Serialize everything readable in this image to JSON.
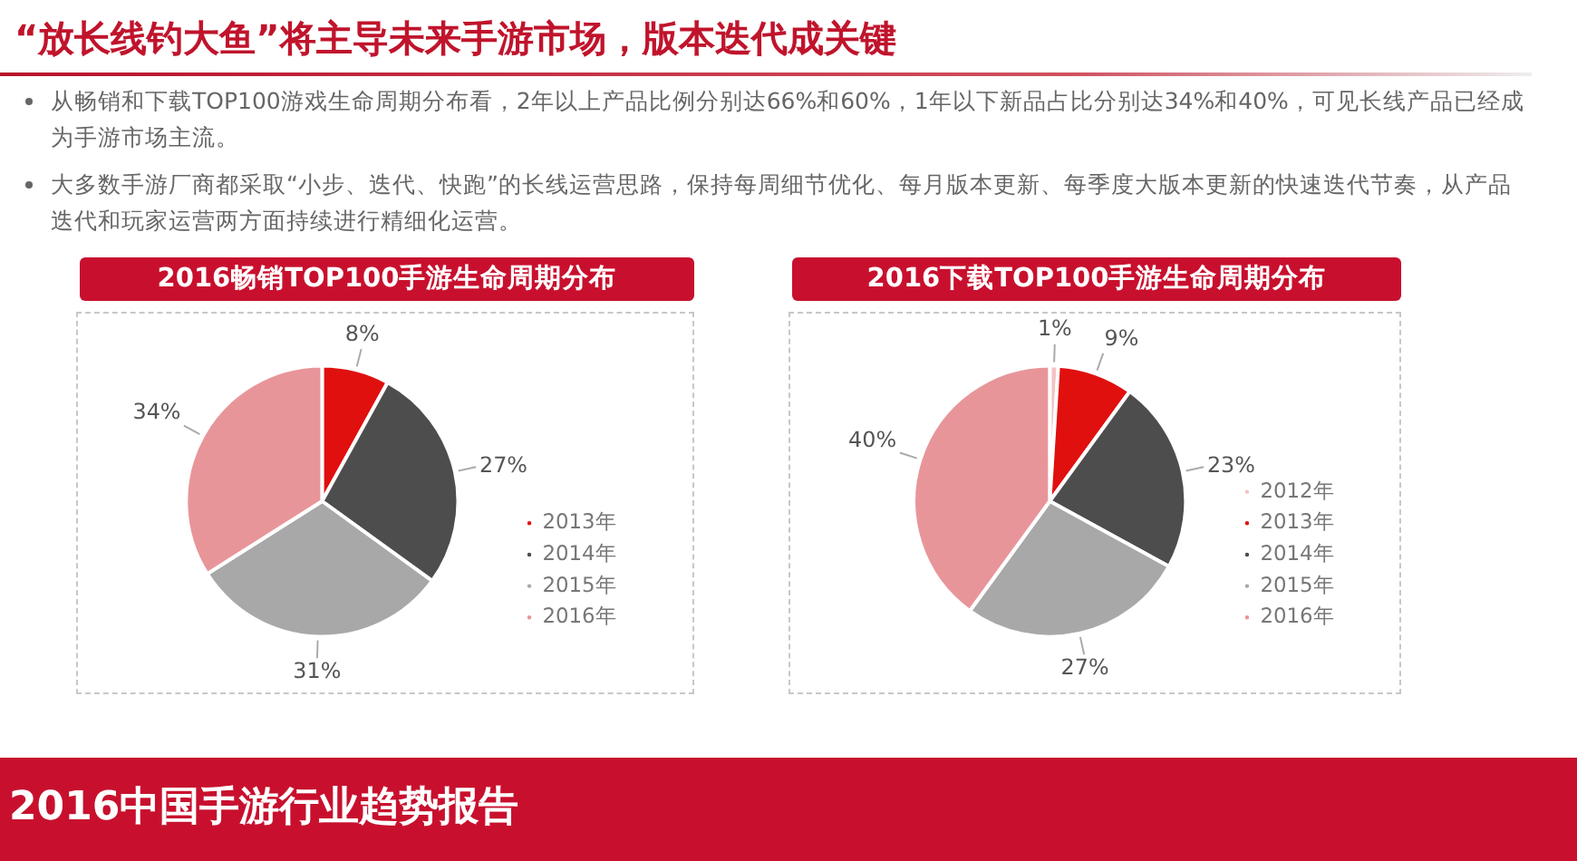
{
  "chart_data": [
    {
      "type": "other",
      "title": "“放长线钓大鱼”将主导未来手游市场，版本迭代成关键",
      "subtitle": "2016中国手游行业趋势报告",
      "annotations": [
        "从畅销和下载TOP100游戏生命周期分布看，2年以上产品比例分别达66%和60%，1年以下新品占比分别达34%和40%，可见长线产品已经成为手游市场主流。",
        "大多数手游厂商都采取“小步、迭代、快跑”的长线运营思路，保持每周细节优化、每月版本更新、每季度大版本更新的快速迭代节奏，从产品迭代和玩家运营两方面持续进行精细化运营。"
      ]
    },
    {
      "type": "pie",
      "title": "2016畅销TOP100手游生命周期分布",
      "categories": [
        "2013年",
        "2014年",
        "2015年",
        "2016年"
      ],
      "values": [
        8,
        27,
        31,
        34
      ],
      "colors": [
        "#e0100f",
        "#4d4d4d",
        "#a8a8a8",
        "#e8959a"
      ],
      "value_labels": [
        "8%",
        "27%",
        "31%",
        "34%"
      ],
      "legend": "bottom right"
    },
    {
      "type": "pie",
      "title": "2016下载TOP100手游生命周期分布",
      "categories": [
        "2012年",
        "2013年",
        "2014年",
        "2015年",
        "2016年"
      ],
      "values": [
        1,
        9,
        23,
        27,
        40
      ],
      "colors": [
        "#f4c2c4",
        "#e0100f",
        "#4d4d4d",
        "#a8a8a8",
        "#e8959a"
      ],
      "value_labels": [
        "1%",
        "9%",
        "23%",
        "27%",
        "40%"
      ],
      "legend": "bottom right"
    }
  ]
}
